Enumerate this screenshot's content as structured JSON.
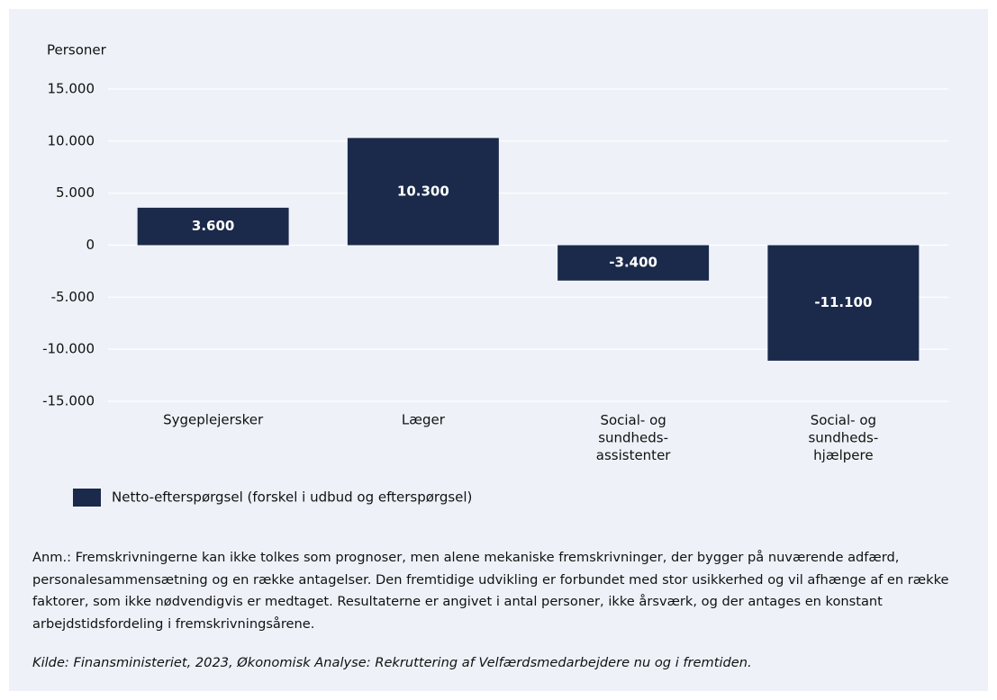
{
  "chart_data": {
    "type": "bar",
    "y_label": "Personer",
    "categories": [
      "Sygeplejersker",
      "Læger",
      "Social- og\nsundheds-\nassistenter",
      "Social- og\nsundheds-\nhjælpere"
    ],
    "series": [
      {
        "name": "Netto-efterspørgsel (forskel i udbud og efterspørgsel)",
        "color": "#1b2a4a",
        "values": [
          3600,
          10300,
          -3400,
          -11100
        ],
        "value_labels": [
          "3.600",
          "10.300",
          "-3.400",
          "-11.100"
        ]
      }
    ],
    "ylim": [
      -15000,
      15000
    ],
    "yticks": [
      {
        "value": -15000,
        "label": "-15.000"
      },
      {
        "value": -10000,
        "label": "-10.000"
      },
      {
        "value": -5000,
        "label": "-5.000"
      },
      0,
      {
        "value": 5000,
        "label": "5.000"
      },
      {
        "value": 10000,
        "label": "10.000"
      },
      {
        "value": 15000,
        "label": "15.000"
      }
    ],
    "grid": true,
    "note": "Anm.: Fremskrivningerne kan ikke tolkes som prognoser, men alene mekaniske fremskrivninger, der bygger på nuværende adfærd, personalesammensætning og en række antagelser. Den fremtidige udvikling er forbundet med stor usikkerhed og vil afhænge af en række faktorer, som ikke nødvendigvis er medtaget. Resultaterne er angivet i antal personer, ikke årsværk, og der antages en konstant arbejdstidsfordeling i fremskrivningsårene.",
    "source": "Kilde: Finansministeriet, 2023, Økonomisk Analyse: Rekruttering af Velfærdsmedarbejdere nu og i fremtiden."
  }
}
